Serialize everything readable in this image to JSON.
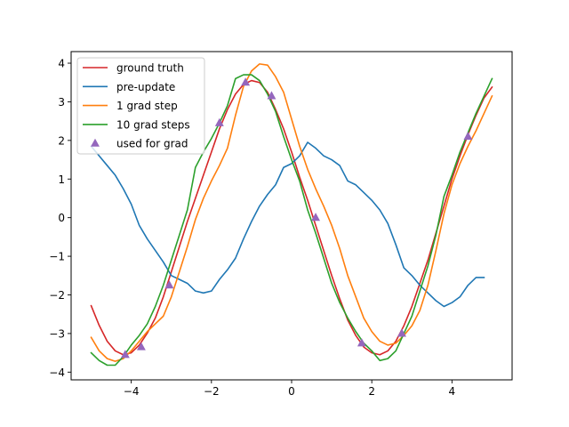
{
  "chart_data": {
    "type": "line",
    "title": "",
    "xlabel": "",
    "ylabel": "",
    "xlim": [
      -5.5,
      5.5
    ],
    "ylim": [
      -4.2,
      4.3
    ],
    "xticks": [
      -4,
      -2,
      0,
      2,
      4
    ],
    "xtick_labels": [
      "−4",
      "−2",
      "0",
      "2",
      "4"
    ],
    "yticks": [
      -4,
      -3,
      -2,
      -1,
      0,
      1,
      2,
      3,
      4
    ],
    "ytick_labels": [
      "−4",
      "−3",
      "−2",
      "−1",
      "0",
      "1",
      "2",
      "3",
      "4"
    ],
    "grid": false,
    "legend_position": "top-left",
    "series": [
      {
        "name": "ground truth",
        "color": "#d62728",
        "points": [
          [
            -5.0,
            -2.28
          ],
          [
            -4.8,
            -2.79
          ],
          [
            -4.6,
            -3.2
          ],
          [
            -4.4,
            -3.45
          ],
          [
            -4.2,
            -3.55
          ],
          [
            -4.0,
            -3.5
          ],
          [
            -3.8,
            -3.3
          ],
          [
            -3.6,
            -2.99
          ],
          [
            -3.4,
            -2.6
          ],
          [
            -3.2,
            -2.05
          ],
          [
            -3.0,
            -1.4
          ],
          [
            -2.8,
            -0.75
          ],
          [
            -2.6,
            -0.1
          ],
          [
            -2.4,
            0.5
          ],
          [
            -2.2,
            1.1
          ],
          [
            -2.0,
            1.7
          ],
          [
            -1.8,
            2.3
          ],
          [
            -1.6,
            2.8
          ],
          [
            -1.4,
            3.2
          ],
          [
            -1.2,
            3.45
          ],
          [
            -1.0,
            3.55
          ],
          [
            -0.8,
            3.5
          ],
          [
            -0.6,
            3.25
          ],
          [
            -0.4,
            2.8
          ],
          [
            -0.2,
            2.3
          ],
          [
            0.0,
            1.7
          ],
          [
            0.2,
            1.05
          ],
          [
            0.4,
            0.45
          ],
          [
            0.6,
            -0.2
          ],
          [
            0.8,
            -0.85
          ],
          [
            1.0,
            -1.5
          ],
          [
            1.2,
            -2.1
          ],
          [
            1.4,
            -2.65
          ],
          [
            1.6,
            -3.05
          ],
          [
            1.8,
            -3.35
          ],
          [
            2.0,
            -3.5
          ],
          [
            2.2,
            -3.55
          ],
          [
            2.4,
            -3.45
          ],
          [
            2.6,
            -3.2
          ],
          [
            2.8,
            -2.8
          ],
          [
            3.0,
            -2.3
          ],
          [
            3.2,
            -1.7
          ],
          [
            3.4,
            -1.1
          ],
          [
            3.6,
            -0.4
          ],
          [
            3.8,
            0.3
          ],
          [
            4.0,
            1.0
          ],
          [
            4.2,
            1.6
          ],
          [
            4.4,
            2.15
          ],
          [
            4.6,
            2.65
          ],
          [
            4.8,
            3.1
          ],
          [
            5.0,
            3.38
          ]
        ]
      },
      {
        "name": "pre-update",
        "color": "#1f77b4",
        "points": [
          [
            -5.0,
            1.85
          ],
          [
            -4.8,
            1.6
          ],
          [
            -4.6,
            1.35
          ],
          [
            -4.4,
            1.1
          ],
          [
            -4.2,
            0.75
          ],
          [
            -4.0,
            0.35
          ],
          [
            -3.8,
            -0.2
          ],
          [
            -3.6,
            -0.55
          ],
          [
            -3.4,
            -0.85
          ],
          [
            -3.2,
            -1.15
          ],
          [
            -3.0,
            -1.5
          ],
          [
            -2.8,
            -1.6
          ],
          [
            -2.6,
            -1.7
          ],
          [
            -2.4,
            -1.9
          ],
          [
            -2.2,
            -1.95
          ],
          [
            -2.0,
            -1.9
          ],
          [
            -1.8,
            -1.6
          ],
          [
            -1.6,
            -1.35
          ],
          [
            -1.4,
            -1.05
          ],
          [
            -1.2,
            -0.55
          ],
          [
            -1.0,
            -0.1
          ],
          [
            -0.8,
            0.3
          ],
          [
            -0.6,
            0.6
          ],
          [
            -0.4,
            0.85
          ],
          [
            -0.2,
            1.3
          ],
          [
            0.0,
            1.4
          ],
          [
            0.2,
            1.6
          ],
          [
            0.4,
            1.95
          ],
          [
            0.6,
            1.8
          ],
          [
            0.8,
            1.6
          ],
          [
            1.0,
            1.5
          ],
          [
            1.2,
            1.35
          ],
          [
            1.4,
            0.95
          ],
          [
            1.6,
            0.85
          ],
          [
            1.8,
            0.65
          ],
          [
            2.0,
            0.45
          ],
          [
            2.2,
            0.2
          ],
          [
            2.4,
            -0.15
          ],
          [
            2.6,
            -0.7
          ],
          [
            2.8,
            -1.3
          ],
          [
            3.0,
            -1.5
          ],
          [
            3.2,
            -1.75
          ],
          [
            3.4,
            -1.95
          ],
          [
            3.6,
            -2.15
          ],
          [
            3.8,
            -2.3
          ],
          [
            4.0,
            -2.2
          ],
          [
            4.2,
            -2.05
          ],
          [
            4.4,
            -1.75
          ],
          [
            4.6,
            -1.55
          ],
          [
            4.8,
            -1.55
          ]
        ]
      },
      {
        "name": "1 grad step",
        "color": "#ff7f0e",
        "points": [
          [
            -5.0,
            -3.1
          ],
          [
            -4.8,
            -3.45
          ],
          [
            -4.6,
            -3.65
          ],
          [
            -4.4,
            -3.72
          ],
          [
            -4.2,
            -3.65
          ],
          [
            -4.0,
            -3.45
          ],
          [
            -3.8,
            -3.2
          ],
          [
            -3.6,
            -2.95
          ],
          [
            -3.4,
            -2.75
          ],
          [
            -3.2,
            -2.55
          ],
          [
            -3.0,
            -2.05
          ],
          [
            -2.8,
            -1.4
          ],
          [
            -2.6,
            -0.75
          ],
          [
            -2.4,
            -0.05
          ],
          [
            -2.2,
            0.5
          ],
          [
            -2.0,
            0.95
          ],
          [
            -1.8,
            1.35
          ],
          [
            -1.6,
            1.8
          ],
          [
            -1.4,
            2.65
          ],
          [
            -1.2,
            3.4
          ],
          [
            -1.0,
            3.8
          ],
          [
            -0.8,
            3.98
          ],
          [
            -0.6,
            3.95
          ],
          [
            -0.4,
            3.65
          ],
          [
            -0.2,
            3.25
          ],
          [
            0.0,
            2.55
          ],
          [
            0.2,
            1.85
          ],
          [
            0.4,
            1.25
          ],
          [
            0.6,
            0.75
          ],
          [
            0.8,
            0.3
          ],
          [
            1.0,
            -0.2
          ],
          [
            1.2,
            -0.8
          ],
          [
            1.4,
            -1.5
          ],
          [
            1.6,
            -2.05
          ],
          [
            1.8,
            -2.6
          ],
          [
            2.0,
            -2.95
          ],
          [
            2.2,
            -3.2
          ],
          [
            2.4,
            -3.3
          ],
          [
            2.6,
            -3.25
          ],
          [
            2.8,
            -3.05
          ],
          [
            3.0,
            -2.8
          ],
          [
            3.2,
            -2.4
          ],
          [
            3.4,
            -1.75
          ],
          [
            3.6,
            -0.85
          ],
          [
            3.8,
            0.1
          ],
          [
            4.0,
            0.85
          ],
          [
            4.2,
            1.4
          ],
          [
            4.4,
            1.85
          ],
          [
            4.6,
            2.25
          ],
          [
            4.8,
            2.7
          ],
          [
            5.0,
            3.15
          ]
        ]
      },
      {
        "name": "10 grad steps",
        "color": "#2ca02c",
        "points": [
          [
            -5.0,
            -3.5
          ],
          [
            -4.8,
            -3.7
          ],
          [
            -4.6,
            -3.82
          ],
          [
            -4.4,
            -3.82
          ],
          [
            -4.2,
            -3.6
          ],
          [
            -4.0,
            -3.3
          ],
          [
            -3.8,
            -3.05
          ],
          [
            -3.6,
            -2.75
          ],
          [
            -3.4,
            -2.3
          ],
          [
            -3.2,
            -1.75
          ],
          [
            -3.0,
            -1.1
          ],
          [
            -2.8,
            -0.45
          ],
          [
            -2.6,
            0.2
          ],
          [
            -2.4,
            1.3
          ],
          [
            -2.2,
            1.7
          ],
          [
            -2.0,
            2.05
          ],
          [
            -1.8,
            2.45
          ],
          [
            -1.6,
            2.9
          ],
          [
            -1.4,
            3.6
          ],
          [
            -1.2,
            3.7
          ],
          [
            -1.0,
            3.7
          ],
          [
            -0.8,
            3.55
          ],
          [
            -0.6,
            3.2
          ],
          [
            -0.4,
            2.75
          ],
          [
            -0.2,
            2.1
          ],
          [
            0.0,
            1.5
          ],
          [
            0.2,
            0.95
          ],
          [
            0.4,
            0.2
          ],
          [
            0.6,
            -0.4
          ],
          [
            0.8,
            -1.05
          ],
          [
            1.0,
            -1.7
          ],
          [
            1.2,
            -2.2
          ],
          [
            1.4,
            -2.6
          ],
          [
            1.6,
            -2.95
          ],
          [
            1.8,
            -3.25
          ],
          [
            2.0,
            -3.45
          ],
          [
            2.2,
            -3.7
          ],
          [
            2.4,
            -3.65
          ],
          [
            2.6,
            -3.45
          ],
          [
            2.8,
            -3.0
          ],
          [
            3.0,
            -2.55
          ],
          [
            3.2,
            -1.9
          ],
          [
            3.4,
            -1.25
          ],
          [
            3.6,
            -0.45
          ],
          [
            3.8,
            0.55
          ],
          [
            4.0,
            1.1
          ],
          [
            4.2,
            1.7
          ],
          [
            4.4,
            2.2
          ],
          [
            4.6,
            2.7
          ],
          [
            4.8,
            3.15
          ],
          [
            5.0,
            3.6
          ]
        ]
      }
    ],
    "scatter": {
      "name": "used for grad",
      "color": "#9467bd",
      "marker": "triangle-up",
      "points": [
        [
          -4.15,
          -3.55
        ],
        [
          -3.75,
          -3.35
        ],
        [
          -3.05,
          -1.75
        ],
        [
          -1.8,
          2.45
        ],
        [
          -1.15,
          3.5
        ],
        [
          -0.5,
          3.15
        ],
        [
          0.6,
          0.0
        ],
        [
          1.75,
          -3.25
        ],
        [
          2.75,
          -3.0
        ],
        [
          4.4,
          2.1
        ]
      ]
    }
  }
}
